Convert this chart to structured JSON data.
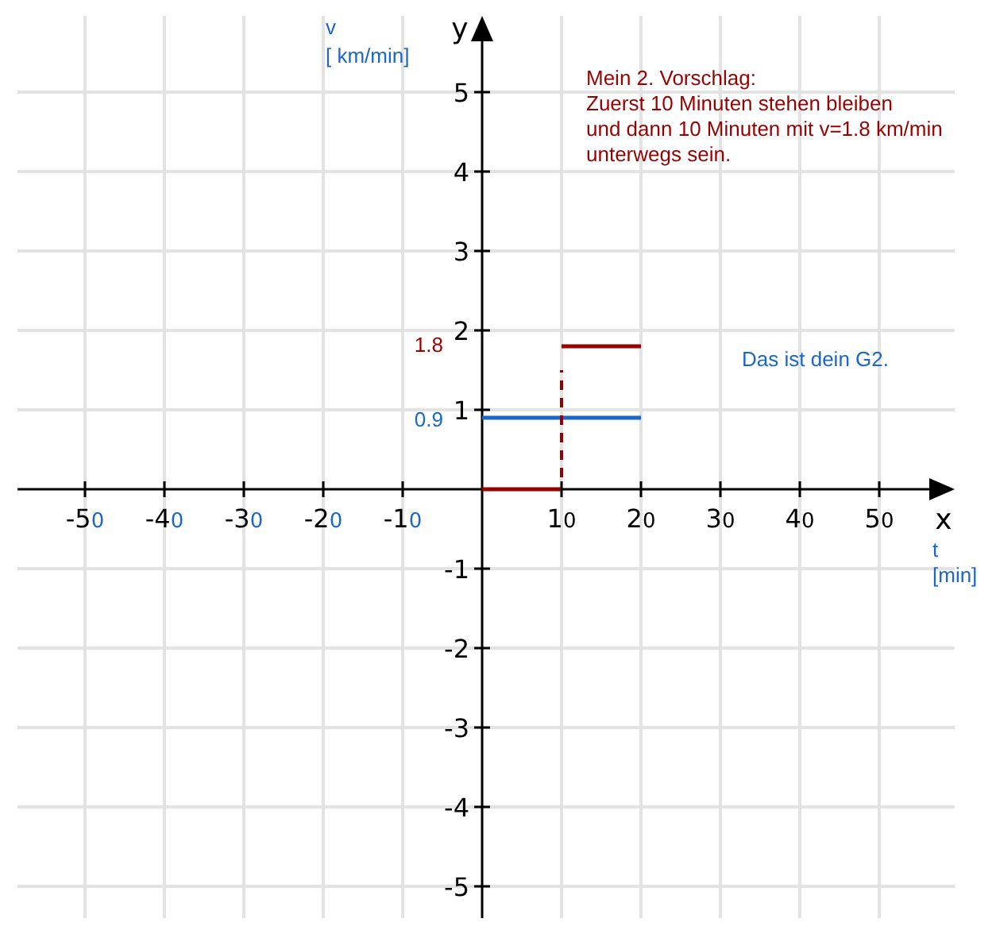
{
  "chart_data": {
    "type": "line",
    "xlabel": "x",
    "ylabel": "y",
    "annotations": [
      "Mein 2. Vorschlag:\nZuerst 10 Minuten stehen bleiben\nund dann 10 Minuten mit v=1.8 km/min\nunterwegs sein.",
      "Das ist dein G2.",
      "v\n[ km/min]",
      "t\n[min]",
      "1.8",
      "0.9"
    ],
    "series": [
      {
        "color": "#1a66cc",
        "x": [
          0,
          20
        ],
        "values": [
          0.9,
          0.9
        ]
      },
      {
        "color": "#990000",
        "x": [
          0,
          10
        ],
        "values": [
          0,
          0
        ]
      },
      {
        "color": "#990000",
        "x": [
          10,
          10
        ],
        "values": [
          0.15,
          1.5
        ],
        "line_style": "dashed"
      },
      {
        "color": "#990000",
        "x": [
          10,
          20
        ],
        "values": [
          1.8,
          1.8
        ]
      }
    ],
    "xlim": [
      -58.5,
      59.5
    ],
    "ylim": [
      -5.4,
      5.96
    ],
    "xticks": [
      -50,
      -40,
      -30,
      -20,
      -10,
      10,
      20,
      30,
      40,
      50
    ],
    "yticks": [
      -5,
      -4,
      -3,
      -2,
      -1,
      1,
      2,
      3,
      4,
      5
    ],
    "grid": true
  }
}
